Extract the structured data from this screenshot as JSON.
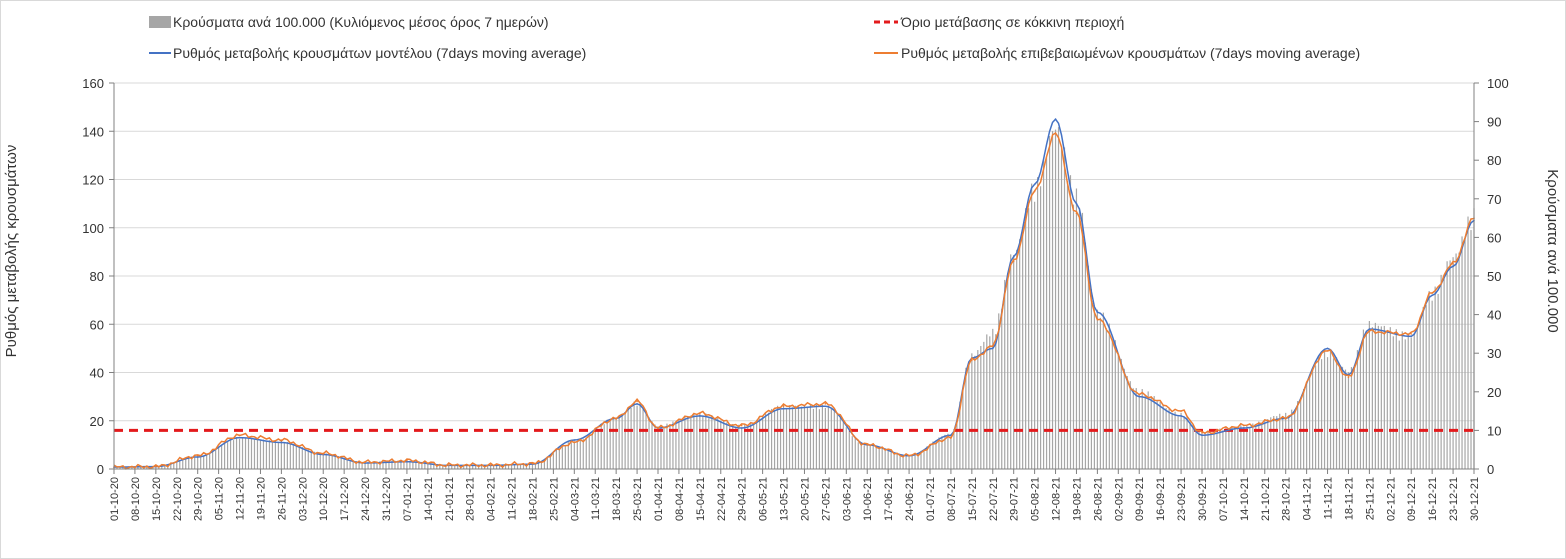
{
  "chart_data": {
    "type": "bar+line",
    "title": "",
    "ylabel_left": "Ρυθμός μεταβολής κρουσμάτων",
    "ylabel_right": "Κρούσματα ανά 100.000",
    "ylim_left": [
      0,
      160
    ],
    "ylim_right": [
      0,
      100
    ],
    "yticks_left": [
      "0",
      "20",
      "40",
      "60",
      "80",
      "100",
      "120",
      "140",
      "160"
    ],
    "yticks_right": [
      "0",
      "10",
      "20",
      "30",
      "40",
      "50",
      "60",
      "70",
      "80",
      "90",
      "100"
    ],
    "x_start": "2020-10-01",
    "x_end": "2021-12-30",
    "xtick_labels": [
      "01-10-20",
      "08-10-20",
      "15-10-20",
      "22-10-20",
      "29-10-20",
      "05-11-20",
      "12-11-20",
      "19-11-20",
      "26-11-20",
      "03-12-20",
      "10-12-20",
      "17-12-20",
      "24-12-20",
      "31-12-20",
      "07-01-21",
      "14-01-21",
      "21-01-21",
      "28-01-21",
      "04-02-21",
      "11-02-21",
      "18-02-21",
      "25-02-21",
      "04-03-21",
      "11-03-21",
      "18-03-21",
      "25-03-21",
      "01-04-21",
      "08-04-21",
      "15-04-21",
      "22-04-21",
      "29-04-21",
      "06-05-21",
      "13-05-21",
      "20-05-21",
      "27-05-21",
      "03-06-21",
      "10-06-21",
      "17-06-21",
      "24-06-21",
      "01-07-21",
      "08-07-21",
      "15-07-21",
      "22-07-21",
      "29-07-21",
      "05-08-21",
      "12-08-21",
      "19-08-21",
      "26-08-21",
      "02-09-21",
      "09-09-21",
      "16-09-21",
      "23-09-21",
      "30-09-21",
      "07-10-21",
      "14-10-21",
      "21-10-21",
      "28-10-21",
      "04-11-21",
      "11-11-21",
      "18-11-21",
      "25-11-21",
      "02-12-21",
      "09-12-21",
      "16-12-21",
      "23-12-21",
      "30-12-21"
    ],
    "threshold": {
      "name": "Όριο μετάβασης σε κόκκινη περιοχή",
      "value_right_axis": 10,
      "color": "#e31a1c"
    },
    "series": [
      {
        "name": "Κρούσματα ανά 100.000 (Κυλιόμενος μέσος όρος 7 ημερών)",
        "type": "bar",
        "axis": "right",
        "color": "#a6a6a6",
        "x": [
          "01-10-20",
          "15-10-20",
          "29-10-20",
          "12-11-20",
          "26-11-20",
          "10-12-20",
          "24-12-20",
          "07-01-21",
          "21-01-21",
          "04-02-21",
          "18-02-21",
          "04-03-21",
          "18-03-21",
          "25-03-21",
          "01-04-21",
          "15-04-21",
          "29-04-21",
          "13-05-21",
          "27-05-21",
          "10-06-21",
          "24-06-21",
          "08-07-21",
          "15-07-21",
          "22-07-21",
          "29-07-21",
          "05-08-21",
          "12-08-21",
          "19-08-21",
          "26-08-21",
          "09-09-21",
          "23-09-21",
          "30-09-21",
          "14-10-21",
          "28-10-21",
          "11-11-21",
          "18-11-21",
          "25-11-21",
          "09-12-21",
          "16-12-21",
          "23-12-21",
          "30-12-21"
        ],
        "values": [
          0.5,
          0.6,
          3,
          8,
          7,
          4,
          1.8,
          2.2,
          1,
          1,
          1.3,
          7,
          13,
          17,
          11,
          14,
          11,
          16,
          16,
          6,
          3.5,
          9,
          29,
          35,
          55,
          72,
          87,
          70,
          40,
          20,
          14,
          9.5,
          11,
          14,
          30,
          25,
          37,
          34,
          45,
          54,
          65
        ]
      },
      {
        "name": "Ρυθμός μεταβολής κρουσμάτων μοντέλου (7days moving average)",
        "type": "line",
        "axis": "left",
        "color": "#4472c4",
        "x": [
          "01-10-20",
          "15-10-20",
          "29-10-20",
          "12-11-20",
          "26-11-20",
          "10-12-20",
          "24-12-20",
          "07-01-21",
          "21-01-21",
          "04-02-21",
          "18-02-21",
          "04-03-21",
          "18-03-21",
          "25-03-21",
          "01-04-21",
          "15-04-21",
          "29-04-21",
          "13-05-21",
          "27-05-21",
          "10-06-21",
          "24-06-21",
          "08-07-21",
          "15-07-21",
          "22-07-21",
          "29-07-21",
          "05-08-21",
          "12-08-21",
          "19-08-21",
          "26-08-21",
          "09-09-21",
          "23-09-21",
          "30-09-21",
          "14-10-21",
          "28-10-21",
          "11-11-21",
          "18-11-21",
          "25-11-21",
          "09-12-21",
          "16-12-21",
          "23-12-21",
          "30-12-21"
        ],
        "values": [
          0.8,
          1,
          5,
          13,
          11,
          6,
          2.5,
          3,
          1.5,
          1.5,
          2,
          12,
          21,
          27,
          17,
          22,
          17,
          25,
          26,
          10,
          5.5,
          14,
          46,
          50,
          88,
          118,
          145,
          110,
          65,
          30,
          22,
          14,
          17,
          21,
          50,
          39,
          58,
          55,
          72,
          84,
          103
        ]
      },
      {
        "name": "Ρυθμός μεταβολής επιβεβαιωμένων κρουσμάτων (7days moving average)",
        "type": "line",
        "axis": "left",
        "color": "#ed7d31",
        "x": [
          "01-10-20",
          "15-10-20",
          "29-10-20",
          "12-11-20",
          "26-11-20",
          "10-12-20",
          "24-12-20",
          "07-01-21",
          "21-01-21",
          "04-02-21",
          "18-02-21",
          "04-03-21",
          "18-03-21",
          "25-03-21",
          "01-04-21",
          "15-04-21",
          "29-04-21",
          "13-05-21",
          "27-05-21",
          "10-06-21",
          "24-06-21",
          "08-07-21",
          "15-07-21",
          "22-07-21",
          "29-07-21",
          "05-08-21",
          "12-08-21",
          "19-08-21",
          "26-08-21",
          "09-09-21",
          "23-09-21",
          "30-09-21",
          "14-10-21",
          "28-10-21",
          "11-11-21",
          "18-11-21",
          "25-11-21",
          "09-12-21",
          "16-12-21",
          "23-12-21",
          "30-12-21"
        ],
        "values": [
          0.8,
          1,
          5.5,
          14,
          12,
          6.5,
          2.8,
          3.5,
          1.6,
          1.6,
          2.2,
          11,
          21,
          28,
          17,
          23,
          18,
          26,
          27,
          10,
          5.5,
          13,
          45,
          51,
          86,
          115,
          139,
          106,
          62,
          31,
          24,
          15,
          18,
          21,
          49,
          38,
          57,
          56,
          73,
          85,
          104
        ]
      }
    ]
  }
}
